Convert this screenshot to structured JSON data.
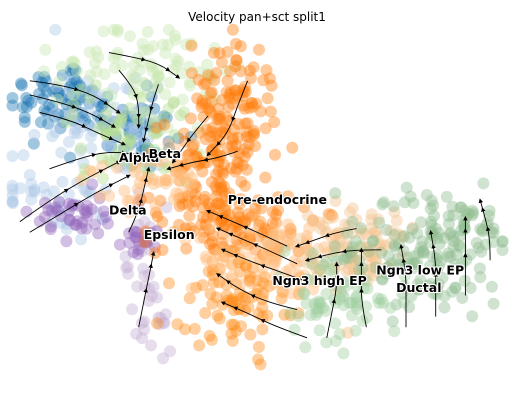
{
  "chart_data": {
    "type": "scatter",
    "title": "Velocity pan+sct split1",
    "xlabel": "",
    "ylabel": "",
    "grid": false,
    "legend": "on data",
    "axes_visible": false,
    "overlay": "velocity streamlines",
    "categories": [
      "Alpha",
      "Beta",
      "Delta",
      "Epsilon",
      "Pre-endocrine",
      "Ngn3 high EP",
      "Ngn3 low EP",
      "Ductal"
    ],
    "colors": {
      "Alpha": "#1f77b4",
      "Beta": "#aec7e8",
      "Delta": "#9467bd",
      "Epsilon": "#c5b0d5",
      "Pre-endocrine": "#ff7f0e",
      "Ngn3 high EP": "#ffbb78",
      "Ngn3 low EP": "#98df8a",
      "Ductal": "#8fbc8f"
    },
    "labels": [
      {
        "text": "Alpha",
        "x": 0.22,
        "y": 0.38
      },
      {
        "text": "Beta",
        "x": 0.28,
        "y": 0.37
      },
      {
        "text": "Pre-endocrine",
        "x": 0.44,
        "y": 0.5
      },
      {
        "text": "Delta",
        "x": 0.2,
        "y": 0.53
      },
      {
        "text": "Epsilon",
        "x": 0.27,
        "y": 0.6
      },
      {
        "text": "Ngn3 low EP",
        "x": 0.74,
        "y": 0.7
      },
      {
        "text": "Ngn3 high EP",
        "x": 0.53,
        "y": 0.73
      },
      {
        "text": "Ductal",
        "x": 0.78,
        "y": 0.75
      }
    ],
    "clusters": [
      {
        "name": "Alpha",
        "color": "#1f77b4",
        "cx": 0.11,
        "cy": 0.2,
        "sx": 0.06,
        "sy": 0.05,
        "n": 70
      },
      {
        "name": "Alpha",
        "color": "#1f77b4",
        "cx": 0.25,
        "cy": 0.3,
        "sx": 0.05,
        "sy": 0.06,
        "n": 50
      },
      {
        "name": "Beta",
        "color": "#aec7e8",
        "cx": 0.2,
        "cy": 0.28,
        "sx": 0.07,
        "sy": 0.08,
        "n": 70
      },
      {
        "name": "Beta",
        "color": "#aec7e8",
        "cx": 0.09,
        "cy": 0.48,
        "sx": 0.06,
        "sy": 0.05,
        "n": 40
      },
      {
        "name": "Beta",
        "color": "#c9e6b0",
        "cx": 0.27,
        "cy": 0.12,
        "sx": 0.08,
        "sy": 0.07,
        "n": 90
      },
      {
        "name": "Beta",
        "color": "#b5dd8f",
        "cx": 0.24,
        "cy": 0.3,
        "sx": 0.06,
        "sy": 0.07,
        "n": 60
      },
      {
        "name": "Delta",
        "color": "#9467bd",
        "cx": 0.12,
        "cy": 0.53,
        "sx": 0.05,
        "sy": 0.03,
        "n": 40
      },
      {
        "name": "Epsilon",
        "color": "#c5b0d5",
        "cx": 0.28,
        "cy": 0.72,
        "sx": 0.02,
        "sy": 0.1,
        "n": 40
      },
      {
        "name": "Epsilon",
        "color": "#9467bd",
        "cx": 0.27,
        "cy": 0.6,
        "sx": 0.03,
        "sy": 0.02,
        "n": 20
      },
      {
        "name": "Pre-endocrine",
        "color": "#ff7f0e",
        "cx": 0.45,
        "cy": 0.22,
        "sx": 0.04,
        "sy": 0.09,
        "n": 110
      },
      {
        "name": "Pre-endocrine",
        "color": "#ff7f0e",
        "cx": 0.44,
        "cy": 0.54,
        "sx": 0.07,
        "sy": 0.06,
        "n": 130
      },
      {
        "name": "Pre-endocrine",
        "color": "#ff7f0e",
        "cx": 0.4,
        "cy": 0.38,
        "sx": 0.05,
        "sy": 0.05,
        "n": 60
      },
      {
        "name": "Ngn3 high EP",
        "color": "#ff8c1a",
        "cx": 0.45,
        "cy": 0.76,
        "sx": 0.06,
        "sy": 0.08,
        "n": 90
      },
      {
        "name": "Ngn3 high EP",
        "color": "#ffbb78",
        "cx": 0.55,
        "cy": 0.66,
        "sx": 0.08,
        "sy": 0.06,
        "n": 100
      },
      {
        "name": "Ngn3 high EP",
        "color": "#ffbb78",
        "cx": 0.3,
        "cy": 0.42,
        "sx": 0.05,
        "sy": 0.05,
        "n": 50
      },
      {
        "name": "Ngn3 low EP",
        "color": "#f3c38e",
        "cx": 0.7,
        "cy": 0.62,
        "sx": 0.07,
        "sy": 0.06,
        "n": 90
      },
      {
        "name": "Ductal",
        "color": "#8fbc8f",
        "cx": 0.82,
        "cy": 0.66,
        "sx": 0.08,
        "sy": 0.08,
        "n": 130
      },
      {
        "name": "Ductal",
        "color": "#8fbc8f",
        "cx": 0.93,
        "cy": 0.58,
        "sx": 0.04,
        "sy": 0.06,
        "n": 50
      },
      {
        "name": "Ductal",
        "color": "#9fcf9f",
        "cx": 0.66,
        "cy": 0.78,
        "sx": 0.06,
        "sy": 0.06,
        "n": 70
      }
    ],
    "streamlines": [
      [
        [
          0.04,
          0.15
        ],
        [
          0.1,
          0.16
        ],
        [
          0.17,
          0.19
        ],
        [
          0.22,
          0.24
        ]
      ],
      [
        [
          0.04,
          0.19
        ],
        [
          0.1,
          0.21
        ],
        [
          0.16,
          0.24
        ],
        [
          0.21,
          0.28
        ]
      ],
      [
        [
          0.06,
          0.24
        ],
        [
          0.12,
          0.26
        ],
        [
          0.18,
          0.3
        ],
        [
          0.23,
          0.33
        ]
      ],
      [
        [
          0.2,
          0.07
        ],
        [
          0.24,
          0.08
        ],
        [
          0.3,
          0.1
        ],
        [
          0.34,
          0.14
        ]
      ],
      [
        [
          0.22,
          0.12
        ],
        [
          0.25,
          0.17
        ],
        [
          0.26,
          0.22
        ],
        [
          0.26,
          0.28
        ]
      ],
      [
        [
          0.3,
          0.16
        ],
        [
          0.29,
          0.2
        ],
        [
          0.28,
          0.26
        ],
        [
          0.27,
          0.32
        ]
      ],
      [
        [
          0.02,
          0.55
        ],
        [
          0.08,
          0.49
        ],
        [
          0.15,
          0.43
        ],
        [
          0.22,
          0.38
        ]
      ],
      [
        [
          0.04,
          0.58
        ],
        [
          0.1,
          0.53
        ],
        [
          0.17,
          0.47
        ],
        [
          0.24,
          0.42
        ]
      ],
      [
        [
          0.08,
          0.4
        ],
        [
          0.14,
          0.37
        ],
        [
          0.2,
          0.35
        ],
        [
          0.26,
          0.36
        ]
      ],
      [
        [
          0.24,
          0.58
        ],
        [
          0.26,
          0.52
        ],
        [
          0.27,
          0.46
        ],
        [
          0.28,
          0.4
        ]
      ],
      [
        [
          0.26,
          0.85
        ],
        [
          0.27,
          0.78
        ],
        [
          0.28,
          0.71
        ],
        [
          0.29,
          0.64
        ]
      ],
      [
        [
          0.46,
          0.35
        ],
        [
          0.42,
          0.37
        ],
        [
          0.37,
          0.38
        ],
        [
          0.32,
          0.4
        ]
      ],
      [
        [
          0.48,
          0.15
        ],
        [
          0.46,
          0.22
        ],
        [
          0.44,
          0.3
        ],
        [
          0.4,
          0.36
        ]
      ],
      [
        [
          0.4,
          0.25
        ],
        [
          0.37,
          0.3
        ],
        [
          0.35,
          0.34
        ],
        [
          0.33,
          0.38
        ]
      ],
      [
        [
          0.56,
          0.62
        ],
        [
          0.5,
          0.58
        ],
        [
          0.45,
          0.55
        ],
        [
          0.4,
          0.52
        ]
      ],
      [
        [
          0.58,
          0.67
        ],
        [
          0.52,
          0.63
        ],
        [
          0.47,
          0.6
        ],
        [
          0.42,
          0.57
        ]
      ],
      [
        [
          0.6,
          0.72
        ],
        [
          0.54,
          0.69
        ],
        [
          0.48,
          0.66
        ],
        [
          0.43,
          0.63
        ]
      ],
      [
        [
          0.58,
          0.8
        ],
        [
          0.52,
          0.78
        ],
        [
          0.46,
          0.74
        ],
        [
          0.42,
          0.7
        ]
      ],
      [
        [
          0.6,
          0.88
        ],
        [
          0.54,
          0.85
        ],
        [
          0.48,
          0.81
        ],
        [
          0.43,
          0.78
        ]
      ],
      [
        [
          0.7,
          0.57
        ],
        [
          0.66,
          0.58
        ],
        [
          0.62,
          0.6
        ],
        [
          0.58,
          0.62
        ]
      ],
      [
        [
          0.75,
          0.63
        ],
        [
          0.7,
          0.63
        ],
        [
          0.65,
          0.64
        ],
        [
          0.6,
          0.66
        ]
      ],
      [
        [
          0.72,
          0.85
        ],
        [
          0.71,
          0.78
        ],
        [
          0.71,
          0.71
        ],
        [
          0.71,
          0.63
        ]
      ],
      [
        [
          0.8,
          0.85
        ],
        [
          0.8,
          0.77
        ],
        [
          0.8,
          0.7
        ],
        [
          0.79,
          0.62
        ]
      ],
      [
        [
          0.86,
          0.82
        ],
        [
          0.86,
          0.74
        ],
        [
          0.86,
          0.66
        ],
        [
          0.85,
          0.58
        ]
      ],
      [
        [
          0.92,
          0.76
        ],
        [
          0.92,
          0.68
        ],
        [
          0.92,
          0.61
        ],
        [
          0.92,
          0.54
        ]
      ],
      [
        [
          0.97,
          0.66
        ],
        [
          0.97,
          0.6
        ],
        [
          0.96,
          0.54
        ],
        [
          0.95,
          0.49
        ]
      ],
      [
        [
          0.64,
          0.88
        ],
        [
          0.65,
          0.81
        ],
        [
          0.66,
          0.74
        ],
        [
          0.66,
          0.67
        ]
      ]
    ]
  }
}
